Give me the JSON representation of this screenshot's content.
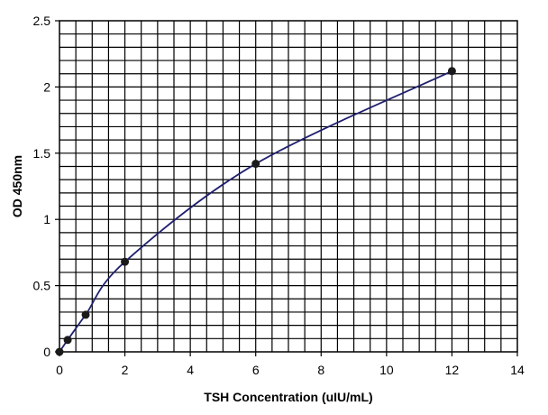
{
  "chart_data": {
    "type": "line",
    "title": "",
    "xlabel": "TSH Concentration (uIU/mL)",
    "ylabel": "OD 450nm",
    "xlim": [
      0,
      14
    ],
    "ylim": [
      0,
      2.5
    ],
    "x_ticks": [
      "0",
      "2",
      "4",
      "6",
      "8",
      "10",
      "12",
      "14"
    ],
    "y_ticks": [
      "0",
      "0.5",
      "1",
      "1.5",
      "2",
      "2.5"
    ],
    "grid": true,
    "series": [
      {
        "x": [
          0,
          0.25,
          0.8,
          2,
          6,
          12
        ],
        "y": [
          0,
          0.09,
          0.28,
          0.68,
          1.42,
          2.12
        ]
      }
    ],
    "colors": {
      "line": "#1f1f6e",
      "marker": "#1a1a1a",
      "grid": "#000000"
    }
  }
}
